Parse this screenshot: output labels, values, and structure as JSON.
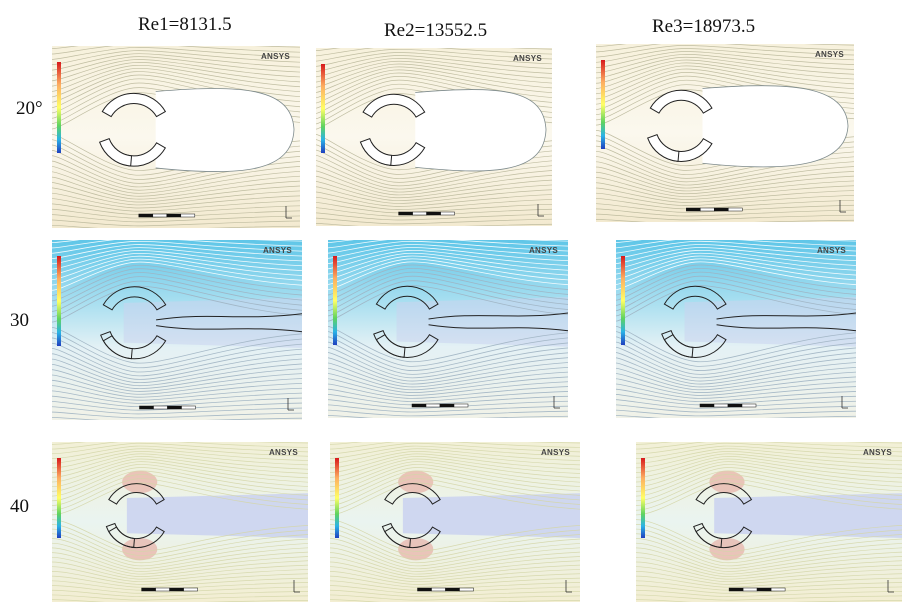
{
  "columns": [
    {
      "label": "Re1=8131.5"
    },
    {
      "label": "Re2=13552.5"
    },
    {
      "label": "Re3=18973.5"
    }
  ],
  "rows": [
    {
      "label": "20°",
      "style": "light"
    },
    {
      "label": "30",
      "style": "blue"
    },
    {
      "label": "40",
      "style": "pastel"
    }
  ],
  "panel_brand": "ANSYS",
  "colors": {
    "light_bg": "#f4efdf",
    "light_line": "#b9b79a",
    "blue_top": "#5fc6e8",
    "blue_mid": "#a9dff0",
    "blue_wake": "#cbd3ee",
    "pastel_bg": "#eef4dc",
    "pastel_line": "#d4d6a8",
    "pastel_wake": "#c8cff0",
    "shape": "#222222",
    "red_zone": "#e58b85"
  }
}
